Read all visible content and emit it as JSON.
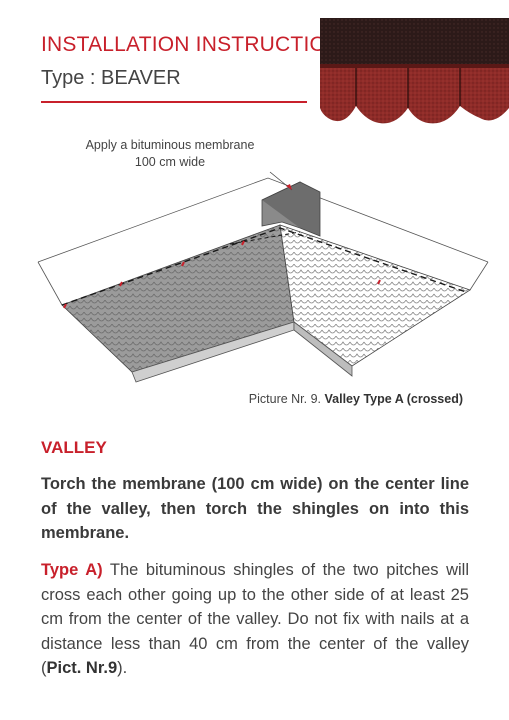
{
  "header": {
    "title": "INSTALLATION INSTRUCTION",
    "subtitle": "Type : BEAVER"
  },
  "diagram": {
    "callout_line1": "Apply a bituminous membrane",
    "callout_line2": "100 cm wide",
    "caption_prefix": "Picture Nr. 9.",
    "caption_bold": "Valley Type A (crossed)"
  },
  "section": {
    "heading": "VALLEY",
    "bold_paragraph": "Torch the membrane (100 cm wide) on the center line of the valley, then torch the shingles on into this membrane.",
    "type_a_lead": "Type A)",
    "type_a_text": " The bituminous shingles of the two pitches will cross each other going up to the other side of at least 25 cm from the center of the valley. Do not fix with nails at a distance less than 40 cm from the center of the valley (",
    "type_a_ref": "Pict. Nr.9",
    "type_a_end": ")."
  },
  "colors": {
    "accent": "#c8202b",
    "shingle_red": "#8e2b28",
    "shingle_dark": "#3a2220"
  }
}
